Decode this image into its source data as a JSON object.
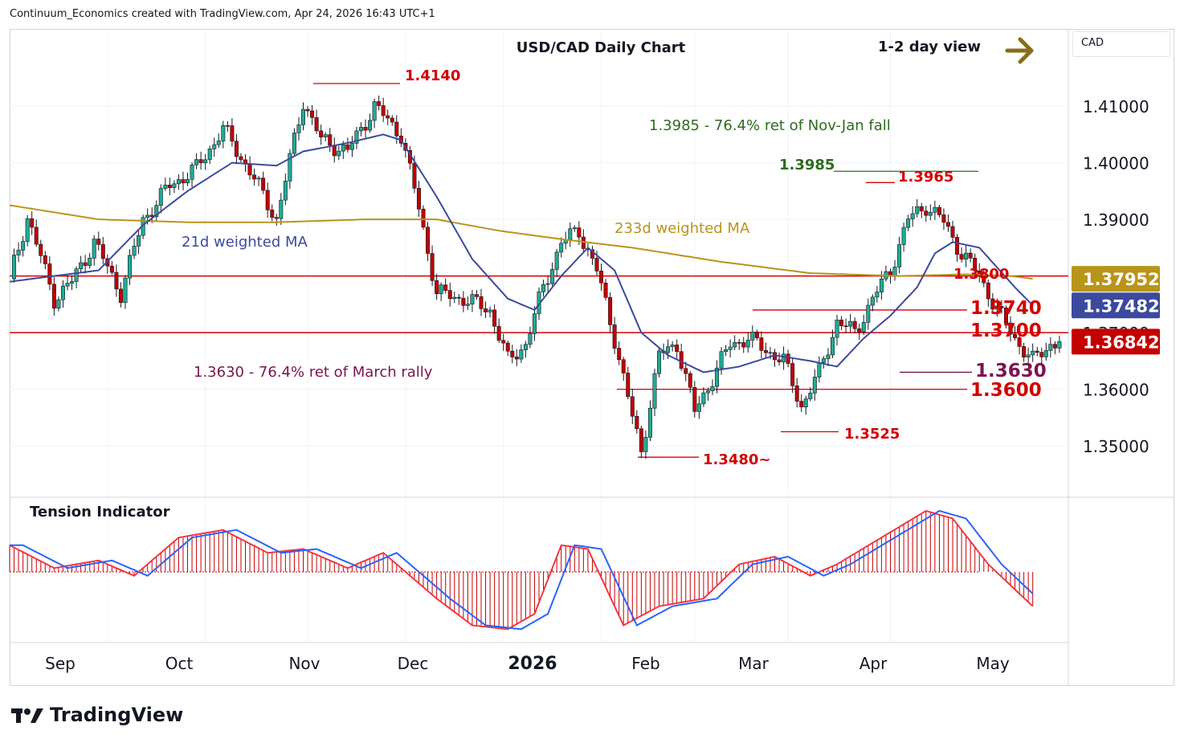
{
  "header": {
    "text": "Continuum_Economics created with TradingView.com, Apr 24, 2026 16:43 UTC+1"
  },
  "chart_title": "USD/CAD Daily Chart",
  "view_label": "1-2 day view",
  "currency": "CAD",
  "indicator_title": "Tension Indicator",
  "brand": "TradingView",
  "colors": {
    "up": "#22ab94",
    "down": "#c40000",
    "ma21": "#3b4a9c",
    "ma233": "#b8941a",
    "red_line": "#d40000",
    "green_text": "#2e6b1e",
    "maroon": "#7b1450",
    "arrow": "#8a6d1a"
  },
  "annotations": {
    "ma21_label": "21d weighted MA",
    "ma233_label": "233d weighted MA",
    "fib_top": "1.3985 - 76.4% ret of Nov-Jan fall",
    "fib_bottom": "1.3630 - 76.4% ret of March rally",
    "level_1_4140": "1.4140",
    "level_1_3985": "1.3985",
    "level_1_3965": "1.3965",
    "level_1_3800": "1.3800",
    "level_1_3740": "1.3740",
    "level_1_3700": "1.3700",
    "level_1_3630": "1.3630",
    "level_1_3600": "1.3600",
    "level_1_3525": "1.3525",
    "level_1_3480": "1.3480~"
  },
  "price_badges": {
    "ma233": "1.37952",
    "ma21": "1.37482",
    "last": "1.36842"
  },
  "chart_data": {
    "type": "candlestick",
    "title": "USD/CAD Daily Chart",
    "y_axis": {
      "ticks": [
        "1.41000",
        "1.40000",
        "1.39000",
        "1.38000",
        "1.37000",
        "1.36000",
        "1.35000"
      ],
      "range": [
        1.3415,
        1.4235
      ]
    },
    "x_axis": {
      "ticks": [
        "Sep",
        "Oct",
        "Nov",
        "Dec",
        "2026",
        "Feb",
        "Mar",
        "Apr",
        "May"
      ]
    },
    "horizontal_levels": [
      1.38,
      1.37
    ],
    "price_path": [
      [
        0,
        1.3795
      ],
      [
        4,
        1.3905
      ],
      [
        10,
        1.376
      ],
      [
        14,
        1.379
      ],
      [
        19,
        1.386
      ],
      [
        25,
        1.377
      ],
      [
        30,
        1.39
      ],
      [
        36,
        1.396
      ],
      [
        42,
        1.399
      ],
      [
        48,
        1.406
      ],
      [
        54,
        1.3985
      ],
      [
        60,
        1.39
      ],
      [
        66,
        1.411
      ],
      [
        70,
        1.404
      ],
      [
        76,
        1.402
      ],
      [
        82,
        1.41
      ],
      [
        88,
        1.405
      ],
      [
        92,
        1.392
      ],
      [
        96,
        1.377
      ],
      [
        102,
        1.376
      ],
      [
        108,
        1.374
      ],
      [
        112,
        1.365
      ],
      [
        116,
        1.368
      ],
      [
        120,
        1.378
      ],
      [
        124,
        1.386
      ],
      [
        128,
        1.388
      ],
      [
        132,
        1.381
      ],
      [
        136,
        1.369
      ],
      [
        140,
        1.355
      ],
      [
        142,
        1.349
      ],
      [
        146,
        1.366
      ],
      [
        150,
        1.368
      ],
      [
        154,
        1.356
      ],
      [
        158,
        1.362
      ],
      [
        162,
        1.368
      ],
      [
        166,
        1.369
      ],
      [
        170,
        1.367
      ],
      [
        174,
        1.365
      ],
      [
        178,
        1.357
      ],
      [
        182,
        1.363
      ],
      [
        186,
        1.372
      ],
      [
        190,
        1.37
      ],
      [
        194,
        1.376
      ],
      [
        198,
        1.381
      ],
      [
        202,
        1.39
      ],
      [
        206,
        1.3925
      ],
      [
        210,
        1.3895
      ],
      [
        214,
        1.384
      ],
      [
        218,
        1.38
      ],
      [
        222,
        1.374
      ],
      [
        226,
        1.369
      ],
      [
        230,
        1.365
      ],
      [
        234,
        1.368
      ],
      [
        236,
        1.3684
      ]
    ],
    "ma21_path": [
      [
        0,
        1.379
      ],
      [
        10,
        1.38
      ],
      [
        20,
        1.381
      ],
      [
        30,
        1.389
      ],
      [
        40,
        1.395
      ],
      [
        50,
        1.4
      ],
      [
        60,
        1.3995
      ],
      [
        66,
        1.402
      ],
      [
        76,
        1.4035
      ],
      [
        84,
        1.405
      ],
      [
        88,
        1.404
      ],
      [
        96,
        1.394
      ],
      [
        104,
        1.383
      ],
      [
        112,
        1.376
      ],
      [
        118,
        1.374
      ],
      [
        124,
        1.38
      ],
      [
        130,
        1.385
      ],
      [
        136,
        1.381
      ],
      [
        142,
        1.37
      ],
      [
        148,
        1.366
      ],
      [
        156,
        1.363
      ],
      [
        164,
        1.364
      ],
      [
        172,
        1.366
      ],
      [
        180,
        1.365
      ],
      [
        186,
        1.364
      ],
      [
        192,
        1.369
      ],
      [
        198,
        1.373
      ],
      [
        204,
        1.378
      ],
      [
        208,
        1.384
      ],
      [
        212,
        1.386
      ],
      [
        218,
        1.385
      ],
      [
        226,
        1.378
      ],
      [
        230,
        1.3748
      ]
    ],
    "ma233_path": [
      [
        0,
        1.3925
      ],
      [
        20,
        1.39
      ],
      [
        40,
        1.3895
      ],
      [
        60,
        1.3895
      ],
      [
        80,
        1.39
      ],
      [
        96,
        1.39
      ],
      [
        110,
        1.388
      ],
      [
        124,
        1.3865
      ],
      [
        140,
        1.385
      ],
      [
        160,
        1.3825
      ],
      [
        180,
        1.3805
      ],
      [
        200,
        1.38
      ],
      [
        215,
        1.3803
      ],
      [
        225,
        1.38
      ],
      [
        230,
        1.3795
      ]
    ],
    "tension_indicator": {
      "zero_line": 0,
      "histogram": [
        [
          0,
          0.35
        ],
        [
          10,
          0.05
        ],
        [
          20,
          0.15
        ],
        [
          28,
          -0.05
        ],
        [
          38,
          0.45
        ],
        [
          48,
          0.55
        ],
        [
          58,
          0.25
        ],
        [
          66,
          0.3
        ],
        [
          76,
          0.05
        ],
        [
          84,
          0.25
        ],
        [
          96,
          -0.35
        ],
        [
          104,
          -0.7
        ],
        [
          112,
          -0.75
        ],
        [
          118,
          -0.55
        ],
        [
          124,
          0.35
        ],
        [
          130,
          0.3
        ],
        [
          138,
          -0.7
        ],
        [
          146,
          -0.45
        ],
        [
          156,
          -0.35
        ],
        [
          164,
          0.1
        ],
        [
          172,
          0.2
        ],
        [
          180,
          -0.05
        ],
        [
          186,
          0.1
        ],
        [
          196,
          0.45
        ],
        [
          206,
          0.8
        ],
        [
          212,
          0.7
        ],
        [
          220,
          0.1
        ],
        [
          230,
          -0.45
        ]
      ]
    }
  }
}
